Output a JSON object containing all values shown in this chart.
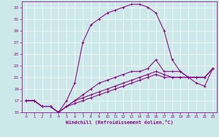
{
  "xlabel": "Windchill (Refroidissement éolien,°C)",
  "bg_color": "#cce8e8",
  "grid_color": "#aacccc",
  "line_color": "#880088",
  "xlim": [
    -0.5,
    23.5
  ],
  "ylim": [
    15,
    34
  ],
  "yticks": [
    15,
    17,
    19,
    21,
    23,
    25,
    27,
    29,
    31,
    33
  ],
  "xticks": [
    0,
    1,
    2,
    3,
    4,
    5,
    6,
    7,
    8,
    9,
    10,
    11,
    12,
    13,
    14,
    15,
    16,
    17,
    18,
    19,
    20,
    21,
    22,
    23
  ],
  "series1": [
    [
      0,
      17
    ],
    [
      1,
      17
    ],
    [
      2,
      16
    ],
    [
      3,
      16
    ],
    [
      4,
      15
    ],
    [
      5,
      17
    ],
    [
      6,
      20
    ],
    [
      7,
      27
    ],
    [
      8,
      30
    ],
    [
      9,
      31
    ],
    [
      10,
      32
    ],
    [
      11,
      32.5
    ],
    [
      12,
      33
    ],
    [
      13,
      33.5
    ],
    [
      14,
      33.5
    ],
    [
      15,
      33
    ],
    [
      16,
      32
    ],
    [
      17,
      29
    ],
    [
      18,
      24
    ],
    [
      19,
      22
    ],
    [
      20,
      21
    ],
    [
      21,
      20
    ],
    [
      22,
      19.5
    ],
    [
      23,
      22.5
    ]
  ],
  "series2": [
    [
      0,
      17
    ],
    [
      1,
      17
    ],
    [
      2,
      16
    ],
    [
      3,
      16
    ],
    [
      4,
      15
    ],
    [
      5,
      16
    ],
    [
      6,
      17
    ],
    [
      7,
      18
    ],
    [
      8,
      19
    ],
    [
      9,
      20
    ],
    [
      10,
      20.5
    ],
    [
      11,
      21
    ],
    [
      12,
      21.5
    ],
    [
      13,
      22
    ],
    [
      14,
      22
    ],
    [
      15,
      22.5
    ],
    [
      16,
      24
    ],
    [
      17,
      22
    ],
    [
      18,
      22
    ],
    [
      19,
      22
    ],
    [
      20,
      21
    ],
    [
      21,
      21
    ],
    [
      22,
      21
    ],
    [
      23,
      22.5
    ]
  ],
  "series3": [
    [
      0,
      17
    ],
    [
      1,
      17
    ],
    [
      2,
      16
    ],
    [
      3,
      16
    ],
    [
      4,
      15
    ],
    [
      5,
      16
    ],
    [
      6,
      17
    ],
    [
      7,
      17.5
    ],
    [
      8,
      18
    ],
    [
      9,
      18.5
    ],
    [
      10,
      19
    ],
    [
      11,
      19.5
    ],
    [
      12,
      20
    ],
    [
      13,
      20.5
    ],
    [
      14,
      21
    ],
    [
      15,
      21.5
    ],
    [
      16,
      22
    ],
    [
      17,
      21.5
    ],
    [
      18,
      21
    ],
    [
      19,
      21
    ],
    [
      20,
      21
    ],
    [
      21,
      21
    ],
    [
      22,
      21
    ],
    [
      23,
      22.5
    ]
  ],
  "series4": [
    [
      0,
      17
    ],
    [
      1,
      17
    ],
    [
      2,
      16
    ],
    [
      3,
      16
    ],
    [
      4,
      15
    ],
    [
      5,
      16
    ],
    [
      6,
      16.5
    ],
    [
      7,
      17
    ],
    [
      8,
      17.5
    ],
    [
      9,
      18
    ],
    [
      10,
      18.5
    ],
    [
      11,
      19
    ],
    [
      12,
      19.5
    ],
    [
      13,
      20
    ],
    [
      14,
      20.5
    ],
    [
      15,
      21
    ],
    [
      16,
      21.5
    ],
    [
      17,
      21
    ],
    [
      18,
      21
    ],
    [
      19,
      21
    ],
    [
      20,
      21
    ],
    [
      21,
      21
    ],
    [
      22,
      21
    ],
    [
      23,
      22.5
    ]
  ],
  "marker": "+",
  "lw": 0.8,
  "ms": 3.5
}
